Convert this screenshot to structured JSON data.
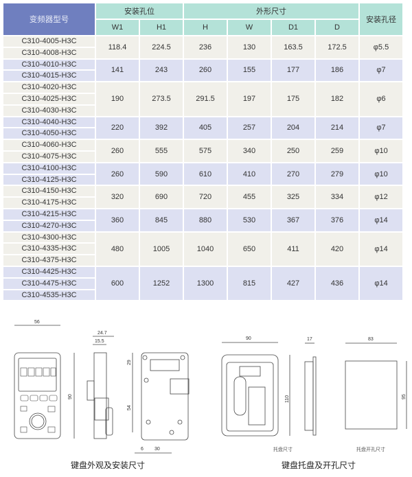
{
  "table": {
    "headers": {
      "model": "变频器型号",
      "mount_pos": "安装孔位",
      "outline": "外形尺寸",
      "hole_dia": "安装孔径",
      "cols": [
        "W1",
        "H1",
        "H",
        "W",
        "D1",
        "D"
      ]
    },
    "groups": [
      {
        "models": [
          "C310-4005-H3C",
          "C310-4008-H3C"
        ],
        "values": [
          "118.4",
          "224.5",
          "236",
          "130",
          "163.5",
          "172.5",
          "φ5.5"
        ]
      },
      {
        "models": [
          "C310-4010-H3C",
          "C310-4015-H3C"
        ],
        "values": [
          "141",
          "243",
          "260",
          "155",
          "177",
          "186",
          "φ7"
        ]
      },
      {
        "models": [
          "C310-4020-H3C",
          "C310-4025-H3C",
          "C310-4030-H3C"
        ],
        "values": [
          "190",
          "273.5",
          "291.5",
          "197",
          "175",
          "182",
          "φ6"
        ]
      },
      {
        "models": [
          "C310-4040-H3C",
          "C310-4050-H3C"
        ],
        "values": [
          "220",
          "392",
          "405",
          "257",
          "204",
          "214",
          "φ7"
        ]
      },
      {
        "models": [
          "C310-4060-H3C",
          "C310-4075-H3C"
        ],
        "values": [
          "260",
          "555",
          "575",
          "340",
          "250",
          "259",
          "φ10"
        ]
      },
      {
        "models": [
          "C310-4100-H3C",
          "C310-4125-H3C"
        ],
        "values": [
          "260",
          "590",
          "610",
          "410",
          "270",
          "279",
          "φ10"
        ]
      },
      {
        "models": [
          "C310-4150-H3C",
          "C310-4175-H3C"
        ],
        "values": [
          "320",
          "690",
          "720",
          "455",
          "325",
          "334",
          "φ12"
        ]
      },
      {
        "models": [
          "C310-4215-H3C",
          "C310-4270-H3C"
        ],
        "values": [
          "360",
          "845",
          "880",
          "530",
          "367",
          "376",
          "φ14"
        ]
      },
      {
        "models": [
          "C310-4300-H3C",
          "C310-4335-H3C",
          "C310-4375-H3C"
        ],
        "values": [
          "480",
          "1005",
          "1040",
          "650",
          "411",
          "420",
          "φ14"
        ]
      },
      {
        "models": [
          "C310-4425-H3C",
          "C310-4475-H3C",
          "C310-4535-H3C"
        ],
        "values": [
          "600",
          "1252",
          "1300",
          "815",
          "427",
          "436",
          "φ14"
        ]
      }
    ]
  },
  "drawings": {
    "keypad": {
      "dims": [
        "56",
        "90",
        "24.7",
        "15.5",
        "29",
        "54",
        "6",
        "30"
      ],
      "caption": "键盘外观及安装尺寸"
    },
    "tray": {
      "dims": [
        "90",
        "110",
        "17",
        "83",
        "95"
      ],
      "label_tray": "托盘尺寸",
      "label_cutout": "托盘开孔尺寸",
      "caption": "键盘托盘及开孔尺寸"
    }
  }
}
